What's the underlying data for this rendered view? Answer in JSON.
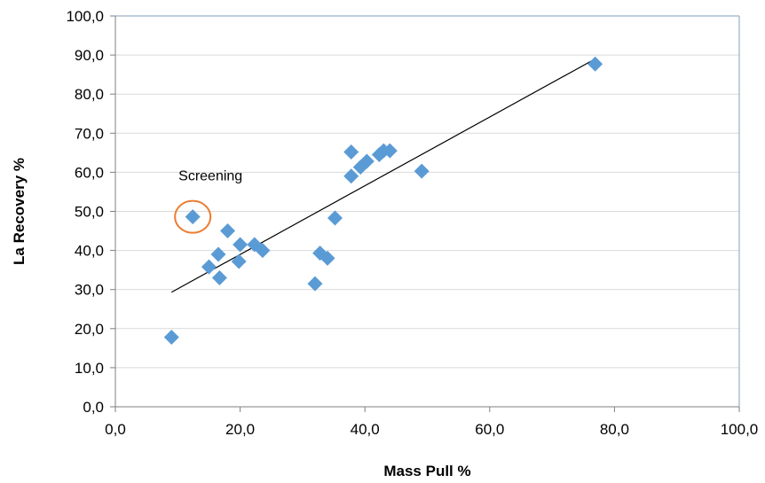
{
  "chart_data": {
    "type": "scatter",
    "xlabel": "Mass Pull %",
    "ylabel": "La Recovery %",
    "xlim": [
      0,
      100
    ],
    "ylim": [
      0,
      100
    ],
    "x_ticks": [
      0,
      20,
      40,
      60,
      80,
      100
    ],
    "x_tick_labels": [
      "0,0",
      "20,0",
      "40,0",
      "60,0",
      "80,0",
      "100,0"
    ],
    "y_ticks": [
      0,
      10,
      20,
      30,
      40,
      50,
      60,
      70,
      80,
      90,
      100
    ],
    "y_tick_labels": [
      "0,0",
      "10,0",
      "20,0",
      "30,0",
      "40,0",
      "50,0",
      "60,0",
      "70,0",
      "80,0",
      "90,0",
      "100,0"
    ],
    "grid": "horizontal",
    "points": [
      {
        "x": 9.0,
        "y": 17.8
      },
      {
        "x": 12.4,
        "y": 48.6
      },
      {
        "x": 15.0,
        "y": 35.8
      },
      {
        "x": 16.5,
        "y": 39.0
      },
      {
        "x": 16.7,
        "y": 33.0
      },
      {
        "x": 18.0,
        "y": 45.0
      },
      {
        "x": 19.8,
        "y": 37.2
      },
      {
        "x": 20.0,
        "y": 41.5
      },
      {
        "x": 22.3,
        "y": 41.5
      },
      {
        "x": 23.6,
        "y": 40.0
      },
      {
        "x": 32.0,
        "y": 31.5
      },
      {
        "x": 32.8,
        "y": 39.3
      },
      {
        "x": 34.0,
        "y": 38.0
      },
      {
        "x": 35.2,
        "y": 48.3
      },
      {
        "x": 37.8,
        "y": 65.2
      },
      {
        "x": 37.8,
        "y": 59.0
      },
      {
        "x": 39.3,
        "y": 61.3
      },
      {
        "x": 40.3,
        "y": 62.8
      },
      {
        "x": 42.3,
        "y": 64.5
      },
      {
        "x": 43.0,
        "y": 65.5
      },
      {
        "x": 44.0,
        "y": 65.5
      },
      {
        "x": 49.1,
        "y": 60.3
      },
      {
        "x": 76.9,
        "y": 87.7
      }
    ],
    "marker_color": "#5B9BD5",
    "trendline": {
      "x": [
        9.0,
        76.9
      ],
      "y": [
        29.3,
        89.0
      ],
      "color": "#000000"
    },
    "annotation": {
      "text": "Screening",
      "highlight_point_index": 1,
      "circle_color": "#ED7D31"
    }
  }
}
